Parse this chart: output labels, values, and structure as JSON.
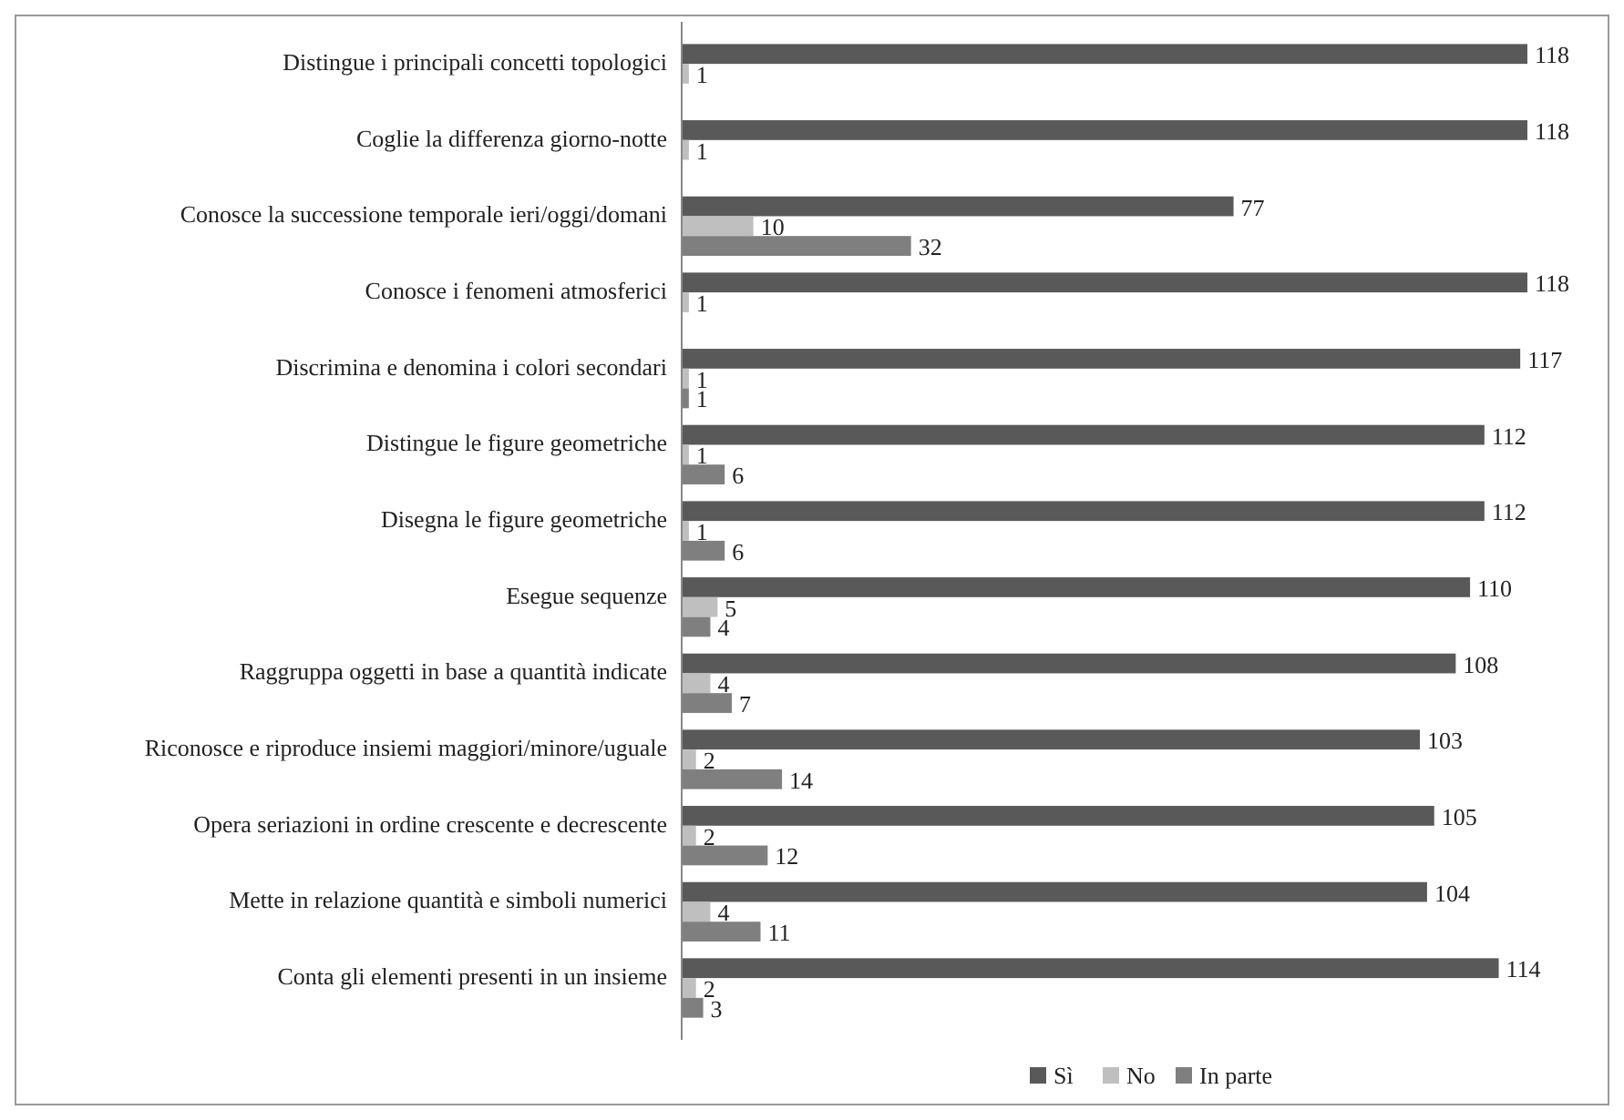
{
  "chart_data": {
    "type": "bar",
    "orientation": "horizontal",
    "categories": [
      "Distingue i principali concetti topologici",
      "Coglie la differenza giorno-notte",
      "Conosce la successione temporale ieri/oggi/domani",
      "Conosce i fenomeni atmosferici",
      "Discrimina e denomina i colori secondari",
      "Distingue le figure geometriche",
      "Disegna le figure geometriche",
      "Esegue sequenze",
      "Raggruppa oggetti in base a quantità indicate",
      "Riconosce e riproduce insiemi maggiori/minore/uguale",
      "Opera seriazioni in ordine crescente e decrescente",
      "Mette in relazione quantità e simboli numerici",
      "Conta gli elementi presenti in un insieme"
    ],
    "series": [
      {
        "name": "Sì",
        "color": "#595959",
        "values": [
          118,
          118,
          77,
          118,
          117,
          112,
          112,
          110,
          108,
          103,
          105,
          104,
          114
        ]
      },
      {
        "name": "No",
        "color": "#bfbfbf",
        "values": [
          1,
          1,
          10,
          1,
          1,
          1,
          1,
          5,
          4,
          2,
          2,
          4,
          2
        ]
      },
      {
        "name": "In parte",
        "color": "#7f7f7f",
        "values": [
          null,
          null,
          32,
          null,
          1,
          6,
          6,
          4,
          7,
          14,
          12,
          11,
          3
        ]
      }
    ],
    "data_labels": true,
    "legend": "bottom"
  }
}
